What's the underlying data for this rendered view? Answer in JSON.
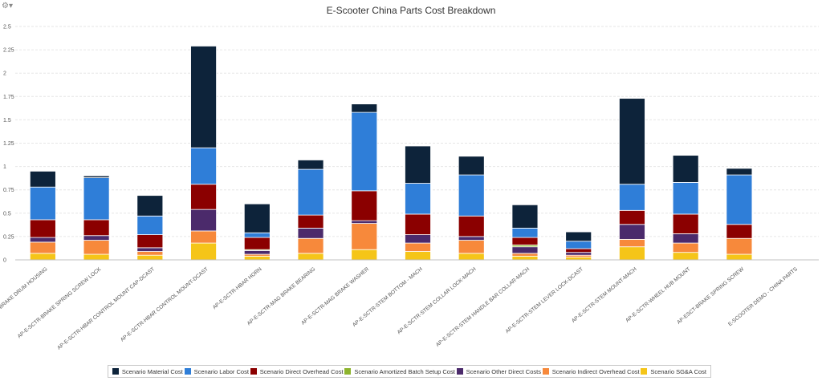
{
  "toolbar": {
    "settings_icon": "gear-icon"
  },
  "chart_data": {
    "type": "bar",
    "stacked": true,
    "title": "E-Scooter China Parts Cost Breakdown",
    "xlabel": "",
    "ylabel": "",
    "ylim": [
      0,
      2.5
    ],
    "yticks": [
      "0",
      "0.25",
      "0.5",
      "0.75",
      "1",
      "1.25",
      "1.5",
      "1.75",
      "2",
      "2.25",
      "2.5"
    ],
    "grid": true,
    "legend_position": "bottom",
    "categories": [
      "AP-E-SCTR-BRAKE DRUM HOUSING",
      "AP-E-SCTR-BRAKE SPRING SCREW LOCK",
      "AP-E-SCTR-HBAR CONTROL MOUNT CAP-DCAST",
      "AP-E-SCTR-HBAR CONTROL MOUNT-DCAST",
      "AP-E-SCTR-HBAR HORN",
      "AP-E-SCTR-MAG BRAKE BEARING",
      "AP-E-SCTR-MAG BRAKE WASHER",
      "AP-E-SCTR-STEM BOTTOM - MACH",
      "AP-E-SCTR-STEM COLLAR LOCK-MACH",
      "AP-E-SCTR-STEM HANDLE BAR COLLAR-MACH",
      "AP-E-SCTR-STEM LEVER LOCK-DCAST",
      "AP-E-SCTR-STEM MOUNT-MACH",
      "AP-E-SCTR-WHEEL HUB MOUNT",
      "AP-ESCT-BRAKE SPRING SCREW",
      "E-SCOOTER DEMO - CHINA PARTS"
    ],
    "series": [
      {
        "name": "Scenario SG&A Cost",
        "color": "#f5c518",
        "values": [
          0.07,
          0.06,
          0.05,
          0.18,
          0.04,
          0.07,
          0.11,
          0.09,
          0.07,
          0.04,
          0.03,
          0.14,
          0.08,
          0.06,
          0
        ]
      },
      {
        "name": "Scenario Indirect Overhead Cost",
        "color": "#f7893b",
        "values": [
          0.12,
          0.15,
          0.04,
          0.13,
          0.02,
          0.16,
          0.28,
          0.09,
          0.14,
          0.03,
          0.02,
          0.08,
          0.1,
          0.17,
          0
        ]
      },
      {
        "name": "Scenario Other Direct Costs",
        "color": "#4b2a6b",
        "values": [
          0.05,
          0.05,
          0.04,
          0.23,
          0.04,
          0.11,
          0.03,
          0.09,
          0.04,
          0.07,
          0.03,
          0.16,
          0.1,
          0,
          0
        ]
      },
      {
        "name": "Scenario Amortized Batch Setup Cost",
        "color": "#8db42e",
        "values": [
          0,
          0,
          0,
          0,
          0.01,
          0,
          0,
          0,
          0,
          0.02,
          0,
          0,
          0,
          0,
          0
        ]
      },
      {
        "name": "Scenario Direct Overhead Cost",
        "color": "#8b0000",
        "values": [
          0.19,
          0.17,
          0.14,
          0.27,
          0.13,
          0.14,
          0.32,
          0.22,
          0.22,
          0.08,
          0.04,
          0.15,
          0.21,
          0.15,
          0
        ]
      },
      {
        "name": "Scenario Labor Cost",
        "color": "#2f7ed8",
        "values": [
          0.35,
          0.45,
          0.2,
          0.39,
          0.05,
          0.49,
          0.84,
          0.33,
          0.44,
          0.1,
          0.08,
          0.28,
          0.34,
          0.53,
          0
        ]
      },
      {
        "name": "Scenario Material Cost",
        "color": "#0d233a",
        "values": [
          0.17,
          0.02,
          0.22,
          1.09,
          0.31,
          0.1,
          0.09,
          0.4,
          0.2,
          0.25,
          0.1,
          0.92,
          0.29,
          0.07,
          0
        ]
      }
    ],
    "legend_order": [
      "Scenario Material Cost",
      "Scenario Labor Cost",
      "Scenario Direct Overhead Cost",
      "Scenario Amortized Batch Setup Cost",
      "Scenario Other Direct Costs",
      "Scenario Indirect Overhead Cost",
      "Scenario SG&A Cost"
    ]
  }
}
